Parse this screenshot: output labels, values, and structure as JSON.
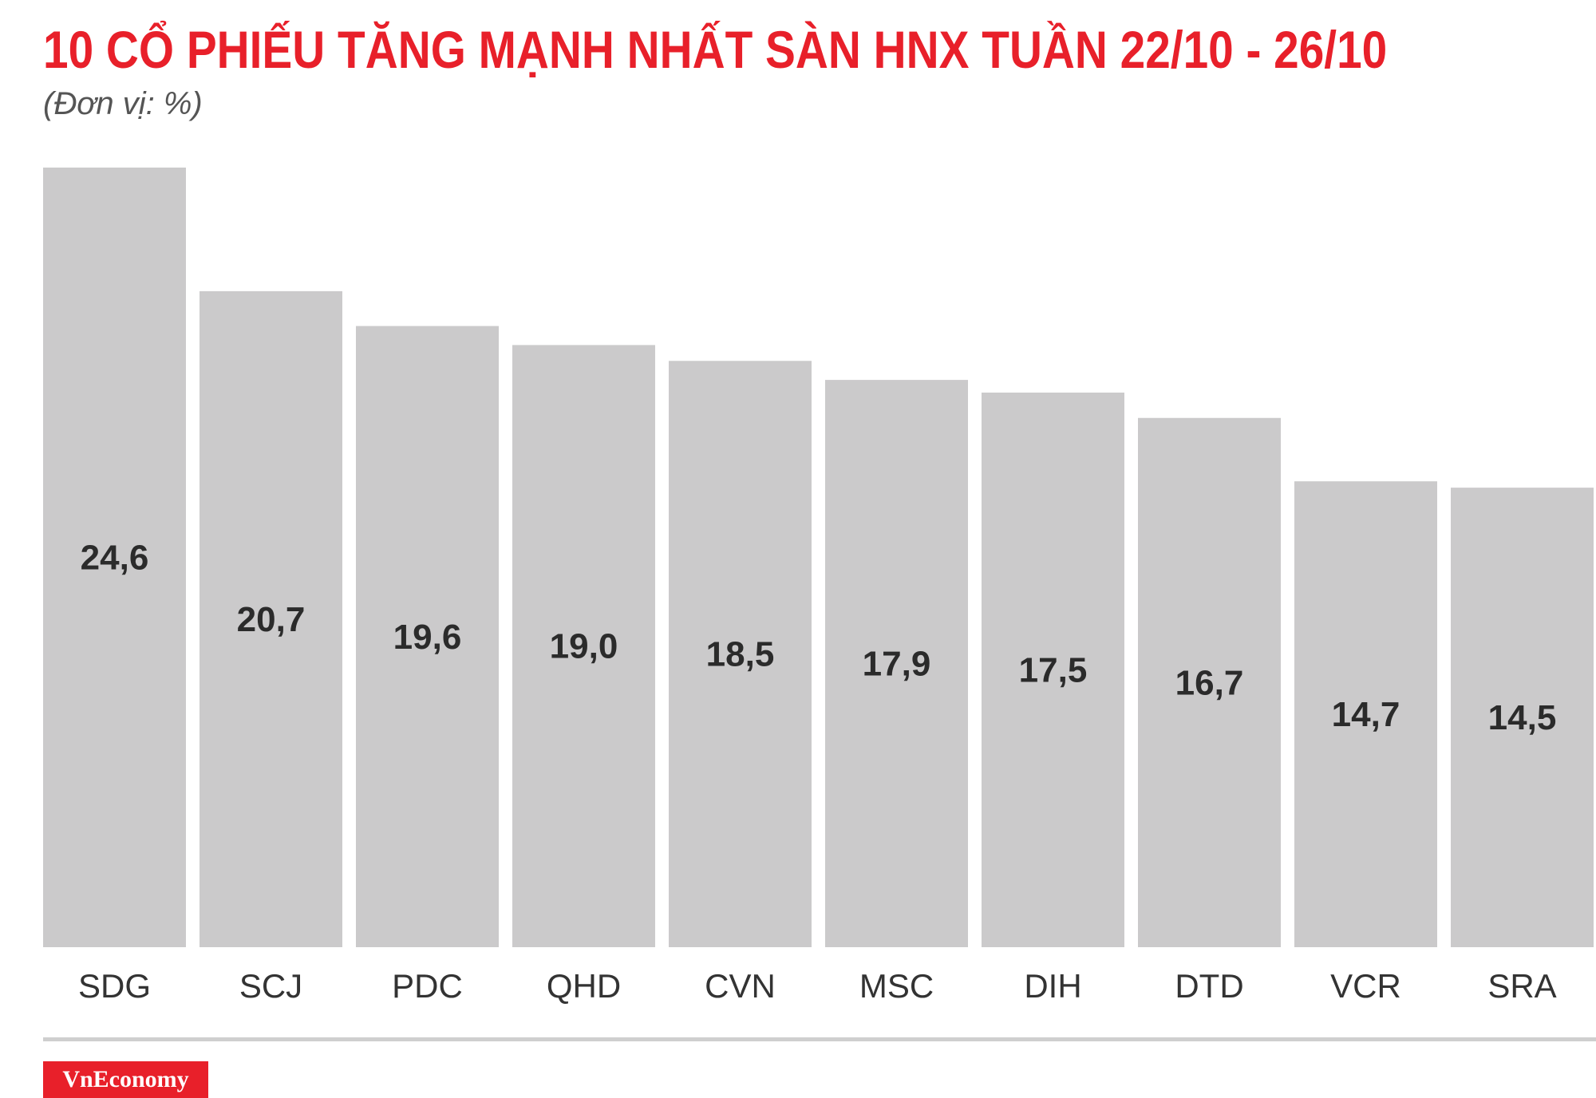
{
  "header": {
    "title": "10 CỔ PHIẾU TĂNG MẠNH NHẤT SÀN HNX TUẦN 22/10 - 26/10",
    "unit": "(Đơn vị: %)"
  },
  "branding": {
    "logo_text": "VnEconomy"
  },
  "colors": {
    "title": "#e8202a",
    "bar": "#cbcacb",
    "brand": "#e8202a"
  },
  "chart_data": {
    "type": "bar",
    "title": "10 CỔ PHIẾU TĂNG MẠNH NHẤT SÀN HNX TUẦN 22/10 - 26/10",
    "categories": [
      "SDG",
      "SCJ",
      "PDC",
      "QHD",
      "CVN",
      "MSC",
      "DIH",
      "DTD",
      "VCR",
      "SRA"
    ],
    "values": [
      24.6,
      20.7,
      19.6,
      19.0,
      18.5,
      17.9,
      17.5,
      16.7,
      14.7,
      14.5
    ],
    "value_labels": [
      "24,6",
      "20,7",
      "19,6",
      "19,0",
      "18,5",
      "17,9",
      "17,5",
      "16,7",
      "14,7",
      "14,5"
    ],
    "ylim": [
      0,
      24.6
    ],
    "xlabel": "",
    "ylabel": "",
    "grid": false,
    "legend": "none"
  }
}
